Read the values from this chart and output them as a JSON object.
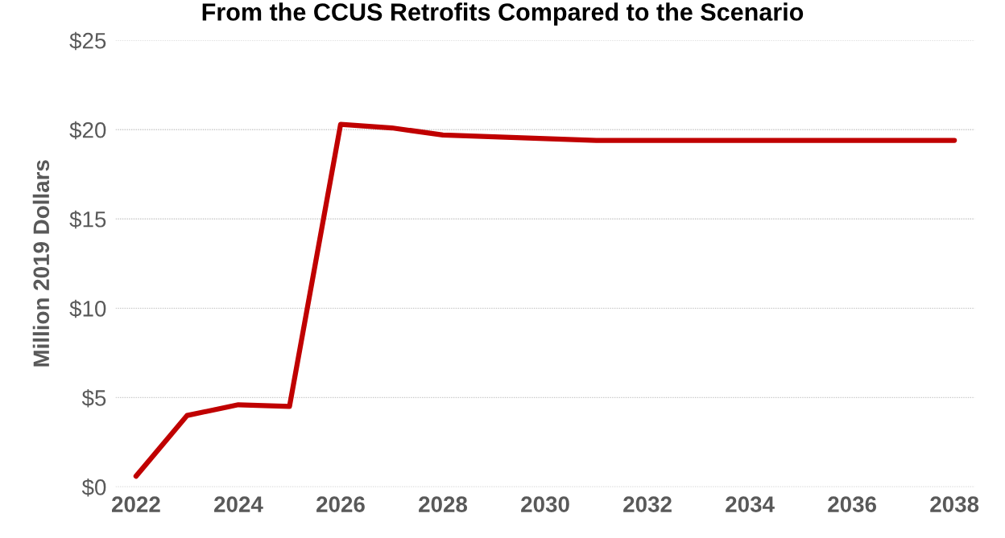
{
  "chart_data": {
    "type": "line",
    "title": "From the CCUS Retrofits Compared to the Scenario",
    "ylabel": "Million 2019 Dollars",
    "x": [
      2022,
      2023,
      2024,
      2025,
      2026,
      2027,
      2028,
      2029,
      2030,
      2031,
      2032,
      2033,
      2034,
      2035,
      2036,
      2037,
      2038
    ],
    "series": [
      {
        "color": "#c00000",
        "values": [
          0.6,
          4.0,
          4.6,
          4.5,
          20.3,
          20.1,
          19.7,
          19.6,
          19.5,
          19.4,
          19.4,
          19.4,
          19.4,
          19.4,
          19.4,
          19.4,
          19.4
        ]
      }
    ],
    "xlim": [
      2021.6,
      2038.4
    ],
    "xticks": [
      2022,
      2024,
      2026,
      2028,
      2030,
      2032,
      2034,
      2036,
      2038
    ],
    "ylim": [
      0,
      25
    ],
    "yticks": [
      {
        "value": 0,
        "label": "$0"
      },
      {
        "value": 5,
        "label": "$5"
      },
      {
        "value": 10,
        "label": "$10"
      },
      {
        "value": 15,
        "label": "$15"
      },
      {
        "value": 20,
        "label": "$20"
      },
      {
        "value": 25,
        "label": "$25"
      }
    ],
    "grid": "y",
    "marker": "none",
    "line_style": "solid"
  }
}
